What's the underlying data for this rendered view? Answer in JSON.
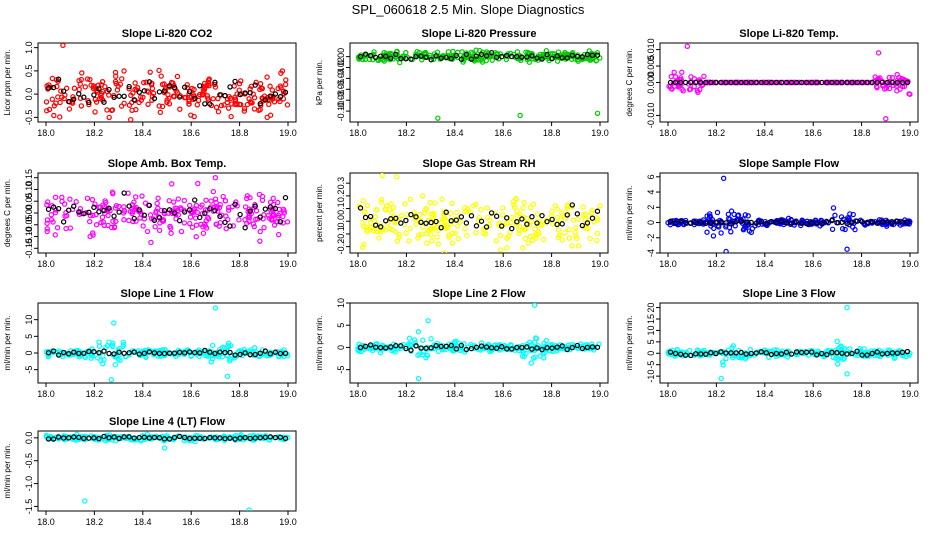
{
  "page_title": "SPL_060618  2.5 Min. Slope Diagnostics",
  "chart_data": [
    {
      "type": "scatter",
      "title": "Slope Li-820 CO2",
      "ylabel": "Licor ppm per min.",
      "color": "#ff0000",
      "xlim": [
        18.0,
        19.0
      ],
      "ylim": [
        -0.6,
        1.1
      ],
      "xticks": [
        "18.0",
        "18.2",
        "18.4",
        "18.6",
        "18.8",
        "19.0"
      ],
      "yticks": [
        {
          "v": -0.5,
          "label": "-0.5"
        },
        {
          "v": 0.0,
          "label": "0.0"
        },
        {
          "v": 0.5,
          "label": "0.5"
        },
        {
          "v": 1.0,
          "label": "1.0"
        }
      ],
      "band": {
        "center": 0.0,
        "spread": 0.45
      },
      "outliers": [
        [
          18.07,
          1.05
        ],
        [
          18.35,
          -0.55
        ]
      ]
    },
    {
      "type": "scatter",
      "title": "Slope Li-820 Pressure",
      "ylabel": "kPa per min.",
      "color": "#00cc00",
      "xlim": [
        18.0,
        19.0
      ],
      "ylim": [
        -0.12,
        0.025
      ],
      "xticks": [
        "18.0",
        "18.2",
        "18.4",
        "18.6",
        "18.8",
        "19.0"
      ],
      "yticks": [
        {
          "v": 0.0,
          "label": "0.00"
        },
        {
          "v": -0.02,
          "label": "-0.02"
        },
        {
          "v": -0.04,
          "label": "-0.04"
        },
        {
          "v": -0.06,
          "label": "-0.06"
        },
        {
          "v": -0.08,
          "label": "-0.08"
        },
        {
          "v": -0.1,
          "label": "-0.10"
        }
      ],
      "band": {
        "center": 0.0,
        "spread": 0.01
      },
      "outliers": [
        [
          18.33,
          -0.113
        ],
        [
          18.67,
          -0.108
        ],
        [
          18.99,
          -0.104
        ]
      ]
    },
    {
      "type": "scatter",
      "title": "Slope Li-820 Temp.",
      "ylabel": "degrees C per min.",
      "color": "#ff00ff",
      "xlim": [
        18.0,
        19.0
      ],
      "ylim": [
        -0.012,
        0.012
      ],
      "xticks": [
        "18.0",
        "18.2",
        "18.4",
        "18.6",
        "18.8",
        "19.0"
      ],
      "yticks": [
        {
          "v": -0.01,
          "label": "-0.010"
        },
        {
          "v": 0.0,
          "label": "0.000"
        },
        {
          "v": 0.005,
          "label": "0.005"
        },
        {
          "v": 0.01,
          "label": "0.010"
        }
      ],
      "band": {
        "center": 0.0,
        "spread": 0.0
      },
      "outliers": [
        [
          18.08,
          0.011
        ],
        [
          18.87,
          0.009
        ],
        [
          18.9,
          -0.011
        ]
      ]
    },
    {
      "type": "scatter",
      "title": "Slope Amb. Box Temp.",
      "ylabel": "degrees C per min.",
      "color": "#ff00ff",
      "xlim": [
        18.0,
        19.0
      ],
      "ylim": [
        -0.17,
        0.17
      ],
      "xticks": [
        "18.0",
        "18.2",
        "18.4",
        "18.6",
        "18.8",
        "19.0"
      ],
      "yticks": [
        {
          "v": -0.15,
          "label": "-0.15"
        },
        {
          "v": -0.1,
          "label": "-0.10"
        },
        {
          "v": -0.05,
          "label": "-0.05"
        },
        {
          "v": 0.0,
          "label": "0.00"
        },
        {
          "v": 0.05,
          "label": "0.05"
        },
        {
          "v": 0.1,
          "label": "0.10"
        },
        {
          "v": 0.15,
          "label": "0.15"
        }
      ],
      "band": {
        "center": 0.0,
        "spread": 0.1
      },
      "outliers": [
        [
          18.7,
          0.15
        ]
      ]
    },
    {
      "type": "scatter",
      "title": "Slope Gas Stream RH",
      "ylabel": "percent per min.",
      "color": "#ffff00",
      "xlim": [
        18.0,
        19.0
      ],
      "ylim": [
        -0.25,
        0.38
      ],
      "xticks": [
        "18.0",
        "18.2",
        "18.4",
        "18.6",
        "18.8",
        "19.0"
      ],
      "yticks": [
        {
          "v": -0.2,
          "label": "-0.2"
        },
        {
          "v": -0.1,
          "label": "-0.1"
        },
        {
          "v": 0.0,
          "label": "0.0"
        },
        {
          "v": 0.1,
          "label": "0.1"
        },
        {
          "v": 0.2,
          "label": "0.2"
        },
        {
          "v": 0.3,
          "label": "0.3"
        }
      ],
      "band": {
        "center": 0.0,
        "spread": 0.18
      },
      "outliers": [
        [
          18.1,
          0.36
        ],
        [
          18.16,
          0.35
        ]
      ]
    },
    {
      "type": "scatter",
      "title": "Slope Sample Flow",
      "ylabel": "ml/min per min.",
      "color": "#0000ff",
      "xlim": [
        18.0,
        19.0
      ],
      "ylim": [
        -4,
        6.5
      ],
      "xticks": [
        "18.0",
        "18.2",
        "18.4",
        "18.6",
        "18.8",
        "19.0"
      ],
      "yticks": [
        {
          "v": -4,
          "label": "-4"
        },
        {
          "v": -2,
          "label": "-2"
        },
        {
          "v": 0,
          "label": "0"
        },
        {
          "v": 2,
          "label": "2"
        },
        {
          "v": 4,
          "label": "4"
        },
        {
          "v": 6,
          "label": "6"
        }
      ],
      "band": {
        "center": 0.0,
        "spread": 0.4
      },
      "outliers": [
        [
          18.23,
          5.8
        ],
        [
          18.24,
          -3.8
        ],
        [
          18.74,
          -3.5
        ]
      ]
    },
    {
      "type": "scatter",
      "title": "Slope Line 1 Flow",
      "ylabel": "ml/min per min.",
      "color": "#00ffff",
      "xlim": [
        18.0,
        19.0
      ],
      "ylim": [
        -9,
        15
      ],
      "xticks": [
        "18.0",
        "18.2",
        "18.4",
        "18.6",
        "18.8",
        "19.0"
      ],
      "yticks": [
        {
          "v": -5,
          "label": "-5"
        },
        {
          "v": 0,
          "label": "0"
        },
        {
          "v": 5,
          "label": "5"
        },
        {
          "v": 10,
          "label": "10"
        }
      ],
      "band": {
        "center": 0.0,
        "spread": 1.2
      },
      "outliers": [
        [
          18.28,
          9
        ],
        [
          18.27,
          -8
        ],
        [
          18.7,
          13.5
        ],
        [
          18.75,
          -7
        ]
      ]
    },
    {
      "type": "scatter",
      "title": "Slope Line 2 Flow",
      "ylabel": "ml/min per min.",
      "color": "#00ffff",
      "xlim": [
        18.0,
        19.0
      ],
      "ylim": [
        -8,
        10
      ],
      "xticks": [
        "18.0",
        "18.2",
        "18.4",
        "18.6",
        "18.8",
        "19.0"
      ],
      "yticks": [
        {
          "v": -5,
          "label": "-5"
        },
        {
          "v": 0,
          "label": "0"
        },
        {
          "v": 5,
          "label": "5"
        },
        {
          "v": 10,
          "label": "10"
        }
      ],
      "band": {
        "center": 0.0,
        "spread": 1.0
      },
      "outliers": [
        [
          18.29,
          6
        ],
        [
          18.73,
          9.5
        ],
        [
          18.25,
          -7
        ]
      ]
    },
    {
      "type": "scatter",
      "title": "Slope Line 3 Flow",
      "ylabel": "ml/min per min.",
      "color": "#00ffff",
      "xlim": [
        18.0,
        19.0
      ],
      "ylim": [
        -13,
        22
      ],
      "xticks": [
        "18.0",
        "18.2",
        "18.4",
        "18.6",
        "18.8",
        "19.0"
      ],
      "yticks": [
        {
          "v": -10,
          "label": "-10"
        },
        {
          "v": -5,
          "label": "-5"
        },
        {
          "v": 0,
          "label": "0"
        },
        {
          "v": 5,
          "label": "5"
        },
        {
          "v": 10,
          "label": "10"
        },
        {
          "v": 15,
          "label": "15"
        },
        {
          "v": 20,
          "label": "20"
        }
      ],
      "band": {
        "center": 0.0,
        "spread": 1.5
      },
      "outliers": [
        [
          18.74,
          20
        ],
        [
          18.74,
          -9
        ],
        [
          18.22,
          -11
        ]
      ]
    },
    {
      "type": "scatter",
      "title": "Slope Line 4 (LT) Flow",
      "ylabel": "ml/min per min.",
      "color": "#00ffff",
      "xlim": [
        18.0,
        19.0
      ],
      "ylim": [
        -1.6,
        0.15
      ],
      "xticks": [
        "18.0",
        "18.2",
        "18.4",
        "18.6",
        "18.8",
        "19.0"
      ],
      "yticks": [
        {
          "v": 0.0,
          "label": "0.0"
        },
        {
          "v": -0.5,
          "label": "-0.5"
        },
        {
          "v": -1.0,
          "label": "-1.0"
        },
        {
          "v": -1.5,
          "label": "-1.5"
        }
      ],
      "band": {
        "center": 0.0,
        "spread": 0.06
      },
      "outliers": [
        [
          18.16,
          -1.38
        ],
        [
          18.84,
          -1.58
        ],
        [
          18.49,
          -0.22
        ]
      ]
    }
  ]
}
